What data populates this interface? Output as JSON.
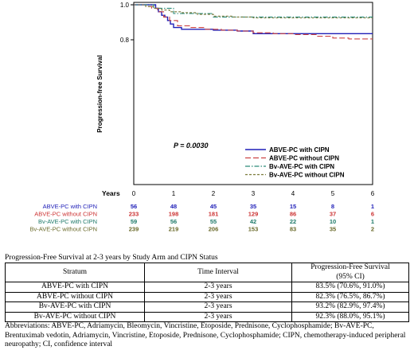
{
  "chart_data": {
    "type": "line",
    "ylabel": "Progression-free Survival",
    "xlabel_row": "Years",
    "xlim": [
      0,
      6
    ],
    "ylim": [
      0.0,
      1.0
    ],
    "y_ticks": [
      "0.8",
      "1.0"
    ],
    "y_tick_values": [
      0.8,
      1.0
    ],
    "x_ticks": [
      "0",
      "1",
      "2",
      "3",
      "4",
      "5",
      "6"
    ],
    "p_value": "P = 0.0030",
    "legend_position": "lower-right",
    "series": [
      {
        "name": "ABVE-PC with CIPN",
        "color": "#1f1fb8",
        "dash": "solid",
        "x": [
          0,
          0.45,
          0.55,
          0.62,
          0.7,
          0.78,
          0.85,
          0.92,
          1.0,
          1.2,
          1.5,
          2.0,
          2.6,
          3.0,
          4.0,
          5.0,
          6.0
        ],
        "y": [
          1.0,
          1.0,
          0.98,
          0.96,
          0.94,
          0.93,
          0.91,
          0.89,
          0.87,
          0.86,
          0.86,
          0.855,
          0.85,
          0.835,
          0.835,
          0.835,
          0.835
        ]
      },
      {
        "name": "ABVE-PC without CIPN",
        "color": "#cc4444",
        "dash": "long-dash",
        "x": [
          0,
          0.3,
          0.45,
          0.6,
          0.75,
          0.9,
          1.1,
          1.4,
          1.8,
          2.2,
          2.6,
          3.0,
          3.5,
          4.0,
          4.6,
          5.0,
          5.4,
          6.0
        ],
        "y": [
          1.0,
          0.99,
          0.98,
          0.96,
          0.93,
          0.91,
          0.88,
          0.87,
          0.86,
          0.855,
          0.85,
          0.84,
          0.835,
          0.83,
          0.82,
          0.81,
          0.805,
          0.805
        ]
      },
      {
        "name": "Bv-AVE-PC with CIPN",
        "color": "#2a8a78",
        "dash": "dash-dot",
        "x": [
          0,
          0.4,
          0.5,
          0.9,
          1.0,
          1.5,
          2.0,
          3.0,
          4.0,
          5.0,
          6.0
        ],
        "y": [
          1.0,
          1.0,
          0.98,
          0.98,
          0.95,
          0.95,
          0.93,
          0.93,
          0.93,
          0.93,
          0.93
        ]
      },
      {
        "name": "Bv-AVE-PC without CIPN",
        "color": "#7a7a3a",
        "dash": "short-dash",
        "x": [
          0,
          0.3,
          0.5,
          0.7,
          0.9,
          1.2,
          1.6,
          2.0,
          2.5,
          3.0,
          4.0,
          5.0,
          6.0
        ],
        "y": [
          1.0,
          0.99,
          0.98,
          0.97,
          0.96,
          0.955,
          0.945,
          0.935,
          0.93,
          0.925,
          0.925,
          0.925,
          0.925
        ]
      }
    ],
    "number_at_risk": [
      {
        "label": "ABVE-PC with CIPN",
        "color": "#1f1fb8",
        "values": [
          "56",
          "48",
          "45",
          "35",
          "15",
          "8",
          "1"
        ]
      },
      {
        "label": "ABVE-PC without CIPN",
        "color": "#cc3333",
        "values": [
          "233",
          "198",
          "181",
          "129",
          "86",
          "37",
          "6"
        ]
      },
      {
        "label": "Bv-AVE-PC with CIPN",
        "color": "#1f7a6a",
        "values": [
          "59",
          "56",
          "55",
          "42",
          "22",
          "10",
          "1"
        ]
      },
      {
        "label": "Bv-AVE-PC without CIPN",
        "color": "#6a6a2a",
        "values": [
          "239",
          "219",
          "206",
          "153",
          "83",
          "35",
          "2"
        ]
      }
    ]
  },
  "table": {
    "title": "Progression-Free Survival at 2-3 years by Study Arm and CIPN Status",
    "headers": [
      "Stratum",
      "Time Interval",
      "Progression-Free Survival",
      "(95% CI)"
    ],
    "rows": [
      [
        "ABVE-PC with CIPN",
        "2-3 years",
        "83.5% (70.6%, 91.0%)"
      ],
      [
        "ABVE-PC without CIPN",
        "2-3 years",
        "82.3% (76.5%, 86.7%)"
      ],
      [
        "Bv-AVE-PC with CIPN",
        "2-3 years",
        "93.2% (82.9%, 97.4%)"
      ],
      [
        "Bv-AVE-PC without CIPN",
        "2-3 years",
        "92.3% (88.0%, 95.1%)"
      ]
    ],
    "abbreviations": "Abbreviations: ABVE-PC, Adriamycin, Bleomycin, Vincristine, Etoposide, Prednisone, Cyclophosphamide; Bv-AVE-PC, Brentuximab vedotin, Adriamycin, Vincristine, Etoposide, Prednisone, Cyclophosphamide; CIPN, chemotherapy-induced peripheral neuropathy; CI, confidence interval"
  }
}
